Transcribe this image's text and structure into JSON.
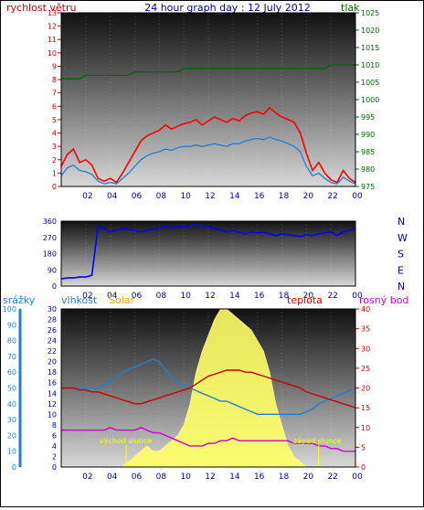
{
  "header": {
    "left_label": "rychlost větru",
    "title": "24 hour graph day : 12 July 2012",
    "right_label": "tlak"
  },
  "colors": {
    "wind_speed": "#ff0000",
    "wind_avg": "#1e7fd6",
    "pressure": "#006600",
    "direction": "#0000ff",
    "temperature": "#cc0000",
    "humidity": "#1e7fd6",
    "dewpoint": "#cc00cc",
    "solar": "#ffff66",
    "rain": "#1e7fd6",
    "solar_label": "#ff9900"
  },
  "chart_data": [
    {
      "type": "line",
      "name": "wind-pressure",
      "x_ticks": [
        "02",
        "04",
        "06",
        "08",
        "10",
        "12",
        "14",
        "16",
        "18",
        "20",
        "22",
        "00"
      ],
      "left_axis": {
        "label": "rychlost větru",
        "ylim": [
          0,
          13
        ],
        "ticks": [
          0,
          1,
          2,
          3,
          4,
          5,
          6,
          7,
          8,
          9,
          10,
          11,
          12,
          13
        ]
      },
      "right_axis": {
        "label": "tlak",
        "ylim": [
          975,
          1025
        ],
        "ticks": [
          975,
          980,
          985,
          990,
          995,
          1000,
          1005,
          1010,
          1015,
          1020,
          1025
        ]
      },
      "hours": [
        0,
        0.5,
        1,
        1.5,
        2,
        2.5,
        3,
        3.5,
        4,
        4.5,
        5,
        5.5,
        6,
        6.5,
        7,
        7.5,
        8,
        8.5,
        9,
        9.5,
        10,
        10.5,
        11,
        11.5,
        12,
        12.5,
        13,
        13.5,
        14,
        14.5,
        15,
        15.5,
        16,
        16.5,
        17,
        17.5,
        18,
        18.5,
        19,
        19.5,
        20,
        20.5,
        21,
        21.5,
        22,
        22.5,
        23,
        23.5,
        24
      ],
      "series": [
        {
          "name": "wind-gust",
          "axis": "left",
          "values": [
            1.5,
            2.4,
            2.8,
            1.8,
            2.0,
            1.6,
            0.6,
            0.4,
            0.6,
            0.3,
            1.0,
            1.8,
            2.6,
            3.4,
            3.8,
            4.0,
            4.2,
            4.6,
            4.3,
            4.5,
            4.7,
            4.8,
            5.0,
            4.6,
            4.9,
            5.2,
            5.0,
            4.8,
            5.1,
            4.9,
            5.3,
            5.5,
            5.6,
            5.4,
            5.9,
            5.5,
            5.2,
            5.0,
            4.8,
            4.0,
            2.5,
            1.2,
            1.8,
            1.0,
            0.5,
            0.3,
            1.2,
            0.6,
            0.3
          ]
        },
        {
          "name": "wind-average",
          "axis": "left",
          "values": [
            0.8,
            1.4,
            1.6,
            1.2,
            1.1,
            0.9,
            0.4,
            0.2,
            0.3,
            0.2,
            0.6,
            1.0,
            1.5,
            2.0,
            2.3,
            2.5,
            2.6,
            2.8,
            2.7,
            2.9,
            3.0,
            3.0,
            3.1,
            3.0,
            3.1,
            3.2,
            3.1,
            3.0,
            3.2,
            3.2,
            3.4,
            3.5,
            3.6,
            3.5,
            3.7,
            3.5,
            3.4,
            3.2,
            3.0,
            2.6,
            1.5,
            0.8,
            1.0,
            0.6,
            0.3,
            0.2,
            0.7,
            0.4,
            0.2
          ]
        },
        {
          "name": "pressure",
          "axis": "right",
          "values": [
            1006,
            1006,
            1006,
            1006,
            1007,
            1007,
            1007,
            1007,
            1007,
            1007,
            1007,
            1007,
            1008,
            1008,
            1008,
            1008,
            1008,
            1008,
            1008,
            1008,
            1009,
            1009,
            1009,
            1009,
            1009,
            1009,
            1009,
            1009,
            1009,
            1009,
            1009,
            1009,
            1009,
            1009,
            1009,
            1009,
            1009,
            1009,
            1009,
            1009,
            1009,
            1009,
            1009,
            1009,
            1010,
            1010,
            1010,
            1010,
            1010
          ]
        }
      ]
    },
    {
      "type": "line",
      "name": "wind-direction",
      "x_ticks": [
        "02",
        "04",
        "06",
        "08",
        "10",
        "12",
        "14",
        "16",
        "18",
        "20",
        "22",
        "00"
      ],
      "left_axis": {
        "ylim": [
          0,
          360
        ],
        "ticks": [
          0,
          90,
          180,
          270,
          360
        ]
      },
      "right_axis": {
        "labels": [
          "N",
          "W",
          "S",
          "E",
          "N"
        ]
      },
      "hours": [
        0,
        0.5,
        1,
        1.5,
        2,
        2.5,
        3,
        3.5,
        4,
        4.5,
        5,
        5.5,
        6,
        6.5,
        7,
        7.5,
        8,
        8.5,
        9,
        9.5,
        10,
        10.5,
        11,
        11.5,
        12,
        12.5,
        13,
        13.5,
        14,
        14.5,
        15,
        15.5,
        16,
        16.5,
        17,
        17.5,
        18,
        18.5,
        19,
        19.5,
        20,
        20.5,
        21,
        21.5,
        22,
        22.5,
        23,
        23.5,
        24
      ],
      "series": [
        {
          "name": "direction",
          "values": [
            40,
            45,
            45,
            50,
            50,
            60,
            330,
            320,
            300,
            310,
            320,
            315,
            310,
            300,
            310,
            315,
            320,
            330,
            325,
            330,
            330,
            335,
            340,
            335,
            330,
            320,
            310,
            300,
            310,
            300,
            290,
            300,
            295,
            300,
            290,
            280,
            290,
            285,
            280,
            275,
            285,
            280,
            290,
            295,
            300,
            280,
            300,
            310,
            320
          ]
        }
      ]
    },
    {
      "type": "line",
      "name": "temperature-humidity-solar",
      "x_ticks": [
        "02",
        "04",
        "06",
        "08",
        "10",
        "12",
        "14",
        "16",
        "18",
        "20",
        "22",
        "00"
      ],
      "legend": [
        "srážky",
        "vlhkost",
        "Solar",
        "teplota",
        "rosný bod"
      ],
      "axes": {
        "rain": {
          "label": "srážky",
          "ylim": [
            0,
            100
          ],
          "ticks": [
            0,
            10,
            20,
            30,
            40,
            50,
            60,
            70,
            80,
            90,
            100
          ]
        },
        "humidity": {
          "label": "vlhkost",
          "ylim": [
            0,
            30
          ],
          "ticks": [
            0,
            2,
            4,
            6,
            8,
            10,
            12,
            14,
            16,
            18,
            20,
            22,
            24,
            26,
            28,
            30
          ]
        },
        "temperature": {
          "label": "teplota",
          "ylim": [
            0,
            40
          ],
          "ticks": [
            0,
            5,
            10,
            15,
            20,
            25,
            30,
            35,
            40
          ]
        }
      },
      "annotations": [
        "východ slunce",
        "západ slunce"
      ],
      "hours": [
        0,
        0.5,
        1,
        1.5,
        2,
        2.5,
        3,
        3.5,
        4,
        4.5,
        5,
        5.5,
        6,
        6.5,
        7,
        7.5,
        8,
        8.5,
        9,
        9.5,
        10,
        10.5,
        11,
        11.5,
        12,
        12.5,
        13,
        13.5,
        14,
        14.5,
        15,
        15.5,
        16,
        16.5,
        17,
        17.5,
        18,
        18.5,
        19,
        19.5,
        20,
        20.5,
        21,
        21.5,
        22,
        22.5,
        23,
        23.5,
        24
      ],
      "series": [
        {
          "name": "teplota",
          "axis": "temperature",
          "values": [
            20,
            20,
            20,
            19.5,
            19.5,
            19,
            19,
            18.5,
            18,
            17.5,
            17,
            16.5,
            16,
            16,
            16.5,
            17,
            17.5,
            18,
            18.5,
            19,
            19.5,
            20,
            21,
            22,
            23,
            23.5,
            24,
            24.5,
            24.5,
            24.5,
            24,
            24,
            23.5,
            23,
            22.5,
            22,
            21.5,
            21,
            20.5,
            20,
            19,
            18.5,
            18,
            17.5,
            17,
            16.5,
            16,
            15.5,
            15
          ]
        },
        {
          "name": "vlhkost",
          "axis": "humidity",
          "values": [
            15,
            15,
            15,
            15,
            15,
            15,
            15,
            15.5,
            16,
            17,
            18,
            18.5,
            19,
            19.5,
            20,
            20.5,
            20,
            18.5,
            17,
            16,
            15.5,
            15,
            14.5,
            14,
            13.5,
            13,
            12.5,
            12.5,
            12,
            11.5,
            11,
            10.5,
            10,
            10,
            10,
            10,
            10,
            10,
            10,
            10,
            10.5,
            11,
            12,
            12.5,
            13,
            13.5,
            14,
            14.5,
            15
          ]
        },
        {
          "name": "rosný bod",
          "axis": "humidity",
          "values": [
            7,
            7,
            7,
            7,
            7,
            7,
            7,
            7,
            7.5,
            7,
            7,
            7,
            7,
            7.5,
            7,
            6.5,
            6.5,
            6,
            5.5,
            5,
            4.5,
            4,
            4,
            4,
            4.5,
            4.5,
            5,
            5,
            5.5,
            5,
            5,
            5,
            5,
            5,
            5,
            5,
            5,
            5,
            4.5,
            4.5,
            4.5,
            4.5,
            4,
            4,
            3.5,
            3.5,
            3,
            3,
            3
          ]
        },
        {
          "name": "Solar",
          "axis": "humidity",
          "values": [
            0,
            0,
            0,
            0,
            0,
            0,
            0,
            0,
            0,
            0,
            0,
            1,
            2,
            3,
            4,
            3,
            3,
            4,
            5,
            6,
            8,
            12,
            18,
            22,
            25,
            28,
            30,
            30,
            29,
            28,
            27,
            26,
            24,
            22,
            18,
            12,
            8,
            4,
            2,
            1,
            0,
            0,
            0,
            0,
            0,
            0,
            0,
            0,
            0
          ]
        }
      ]
    }
  ]
}
